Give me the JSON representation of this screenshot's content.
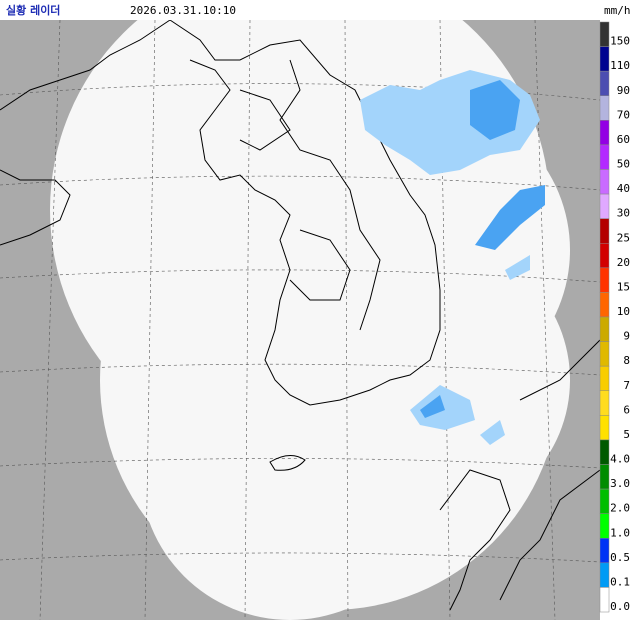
{
  "header": {
    "title": "실황 레이더",
    "time": "2026.03.31.10:10"
  },
  "legend": {
    "unit": "mm/h",
    "items": [
      {
        "label": "150",
        "color": "#333333"
      },
      {
        "label": "110",
        "color": "#000390"
      },
      {
        "label": "90",
        "color": "#4c4eb1"
      },
      {
        "label": "70",
        "color": "#b3b4de"
      },
      {
        "label": "60",
        "color": "#9300e4"
      },
      {
        "label": "50",
        "color": "#b329ff"
      },
      {
        "label": "40",
        "color": "#c96bff"
      },
      {
        "label": "30",
        "color": "#e0a9ff"
      },
      {
        "label": "25",
        "color": "#b40000"
      },
      {
        "label": "20",
        "color": "#d20000"
      },
      {
        "label": "15",
        "color": "#ff3300"
      },
      {
        "label": "10",
        "color": "#ff6600"
      },
      {
        "label": "9",
        "color": "#ccaa00"
      },
      {
        "label": "8",
        "color": "#e0b900"
      },
      {
        "label": "7",
        "color": "#f9cd00"
      },
      {
        "label": "6",
        "color": "#ffdc1f"
      },
      {
        "label": "5",
        "color": "#ffe100"
      },
      {
        "label": "4.0",
        "color": "#005a00"
      },
      {
        "label": "3.0",
        "color": "#008c00"
      },
      {
        "label": "2.0",
        "color": "#00be00"
      },
      {
        "label": "1.0",
        "color": "#00ff00"
      },
      {
        "label": "0.5",
        "color": "#0033f5"
      },
      {
        "label": "0.1",
        "color": "#009bf5"
      },
      {
        "label": "0.0",
        "color": "#ffffff"
      }
    ]
  }
}
